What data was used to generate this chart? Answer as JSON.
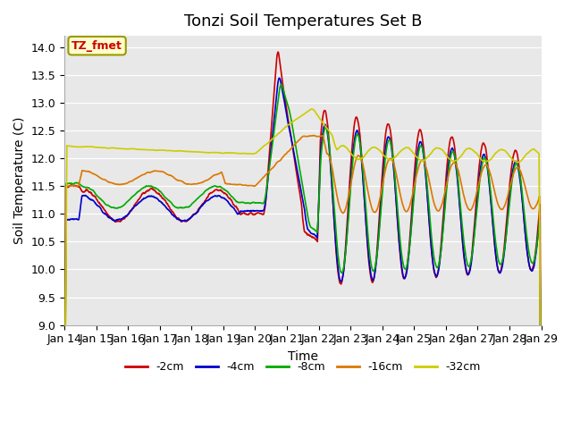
{
  "title": "Tonzi Soil Temperatures Set B",
  "xlabel": "Time",
  "ylabel": "Soil Temperature (C)",
  "ylim": [
    9.0,
    14.2
  ],
  "yticks": [
    9.0,
    9.5,
    10.0,
    10.5,
    11.0,
    11.5,
    12.0,
    12.5,
    13.0,
    13.5,
    14.0
  ],
  "xtick_labels": [
    "Jan 14",
    "Jan 15",
    "Jan 16",
    "Jan 17",
    "Jan 18",
    "Jan 19",
    "Jan 20",
    "Jan 21",
    "Jan 22",
    "Jan 23",
    "Jan 24",
    "Jan 25",
    "Jan 26",
    "Jan 27",
    "Jan 28",
    "Jan 29"
  ],
  "series_colors": [
    "#cc0000",
    "#0000cc",
    "#00aa00",
    "#dd7700",
    "#cccc00"
  ],
  "series_labels": [
    "-2cm",
    "-4cm",
    "-8cm",
    "-16cm",
    "-32cm"
  ],
  "legend_label": "TZ_fmet",
  "legend_bg": "#ffffcc",
  "legend_border": "#999900",
  "plot_bg": "#e8e8e8",
  "line_width": 1.2,
  "title_fontsize": 13,
  "axis_fontsize": 10,
  "tick_fontsize": 9
}
